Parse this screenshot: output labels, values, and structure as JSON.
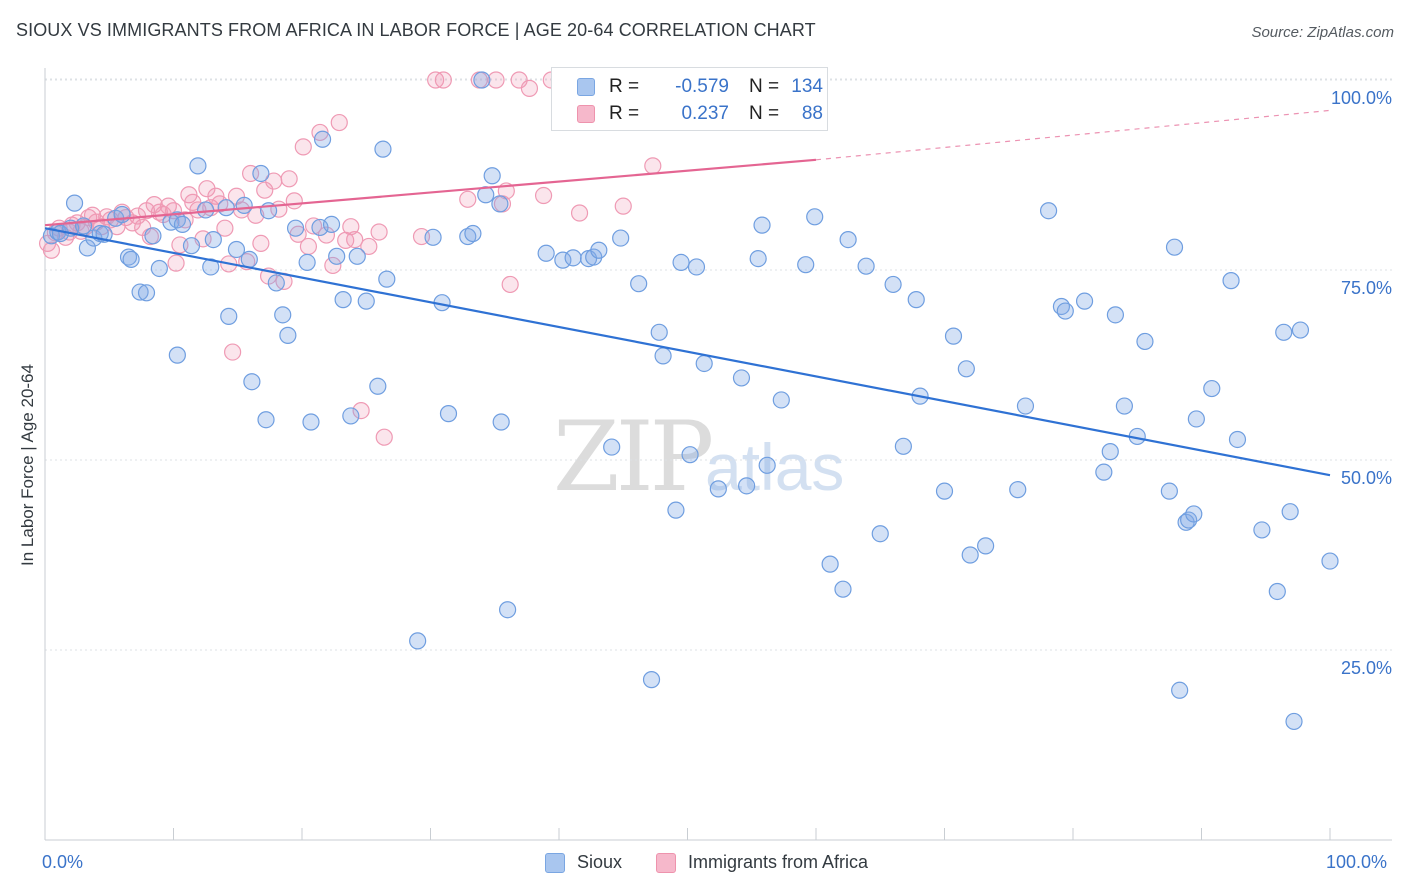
{
  "header": {
    "title": "SIOUX VS IMMIGRANTS FROM AFRICA IN LABOR FORCE | AGE 20-64 CORRELATION CHART",
    "source": "Source: ZipAtlas.com"
  },
  "watermark": {
    "zip": "ZIP",
    "atlas": "atlas"
  },
  "legend_top": {
    "r_label": "R =",
    "n_label": "N =",
    "rows": [
      {
        "name": "Sioux",
        "r": "-0.579",
        "n": "134",
        "fill": "#a9c6ef",
        "stroke": "#7aa6e2"
      },
      {
        "name": "Immigrants from Africa",
        "r": "0.237",
        "n": "88",
        "fill": "#f6b8cb",
        "stroke": "#ee93ad"
      }
    ]
  },
  "colors": {
    "blue_point_fill": "rgba(130,170,230,0.35)",
    "blue_point_stroke": "#6f9ee0",
    "pink_point_fill": "rgba(240,150,180,0.25)",
    "pink_point_stroke": "#ef9ab4",
    "blue_line": "#2f72d4",
    "pink_line": "#e46592",
    "grid": "#dde1e5",
    "tick_label": "#3a73c9"
  },
  "chart_data": {
    "type": "scatter",
    "title": "SIOUX VS IMMIGRANTS FROM AFRICA IN LABOR FORCE | AGE 20-64 CORRELATION CHART",
    "xlabel": "",
    "ylabel": "In Labor Force | Age 20-64",
    "xlim": [
      0,
      100
    ],
    "ylim": [
      0,
      105
    ],
    "x_tick_labels": [
      "0.0%",
      "100.0%"
    ],
    "y_ticks": [
      {
        "value": 25,
        "label": "25.0%"
      },
      {
        "value": 50,
        "label": "50.0%"
      },
      {
        "value": 75,
        "label": "75.0%"
      },
      {
        "value": 100,
        "label": "100.0%"
      }
    ],
    "grid": true,
    "legend_position": "top-center",
    "series": [
      {
        "name": "Sioux",
        "R": -0.579,
        "N": 134,
        "trend": {
          "x0": 0,
          "y0": 80.5,
          "x1": 100,
          "y1": 48.0,
          "dashed_from": null
        },
        "points": [
          [
            0.5,
            79.5
          ],
          [
            1.0,
            80.0
          ],
          [
            1.2,
            79.8
          ],
          [
            2.0,
            80.5
          ],
          [
            2.3,
            83.8
          ],
          [
            3.0,
            80.8
          ],
          [
            3.3,
            77.9
          ],
          [
            3.8,
            79.2
          ],
          [
            4.3,
            79.8
          ],
          [
            4.6,
            79.7
          ],
          [
            5.5,
            81.8
          ],
          [
            6.0,
            82.3
          ],
          [
            6.5,
            76.7
          ],
          [
            6.7,
            76.4
          ],
          [
            7.4,
            72.1
          ],
          [
            7.9,
            72.0
          ],
          [
            8.4,
            79.5
          ],
          [
            8.9,
            75.2
          ],
          [
            9.8,
            81.3
          ],
          [
            10.3,
            81.6
          ],
          [
            10.3,
            63.8
          ],
          [
            10.7,
            81.0
          ],
          [
            11.4,
            78.2
          ],
          [
            11.9,
            88.7
          ],
          [
            12.5,
            82.9
          ],
          [
            12.9,
            75.4
          ],
          [
            13.1,
            79.0
          ],
          [
            14.1,
            83.2
          ],
          [
            14.3,
            68.9
          ],
          [
            14.9,
            77.7
          ],
          [
            15.5,
            83.5
          ],
          [
            15.9,
            76.4
          ],
          [
            16.1,
            60.3
          ],
          [
            16.8,
            87.7
          ],
          [
            17.2,
            55.3
          ],
          [
            17.4,
            82.8
          ],
          [
            18.0,
            73.3
          ],
          [
            18.5,
            69.1
          ],
          [
            18.9,
            66.4
          ],
          [
            19.5,
            80.5
          ],
          [
            20.4,
            76.0
          ],
          [
            20.7,
            55.0
          ],
          [
            21.4,
            80.6
          ],
          [
            21.6,
            92.2
          ],
          [
            22.3,
            81.0
          ],
          [
            22.7,
            76.8
          ],
          [
            23.2,
            71.1
          ],
          [
            23.8,
            55.8
          ],
          [
            24.3,
            76.8
          ],
          [
            25.0,
            70.9
          ],
          [
            25.9,
            59.7
          ],
          [
            26.3,
            90.9
          ],
          [
            26.6,
            73.8
          ],
          [
            29.0,
            26.2
          ],
          [
            30.2,
            79.3
          ],
          [
            30.9,
            70.7
          ],
          [
            31.4,
            56.1
          ],
          [
            32.9,
            79.4
          ],
          [
            33.3,
            79.8
          ],
          [
            34.0,
            100.0
          ],
          [
            34.3,
            84.9
          ],
          [
            34.8,
            87.4
          ],
          [
            35.5,
            55.0
          ],
          [
            36.0,
            30.3
          ],
          [
            35.4,
            83.7
          ],
          [
            39.0,
            77.2
          ],
          [
            40.3,
            76.3
          ],
          [
            41.1,
            76.6
          ],
          [
            42.3,
            76.5
          ],
          [
            42.7,
            76.7
          ],
          [
            43.1,
            77.6
          ],
          [
            44.1,
            51.7
          ],
          [
            44.8,
            79.2
          ],
          [
            46.2,
            73.2
          ],
          [
            47.2,
            21.1
          ],
          [
            47.8,
            66.8
          ],
          [
            48.1,
            63.7
          ],
          [
            49.1,
            43.4
          ],
          [
            49.5,
            76.0
          ],
          [
            50.2,
            50.7
          ],
          [
            50.7,
            75.4
          ],
          [
            51.3,
            62.7
          ],
          [
            52.4,
            46.2
          ],
          [
            54.2,
            60.8
          ],
          [
            54.6,
            46.6
          ],
          [
            55.5,
            76.5
          ],
          [
            55.8,
            80.9
          ],
          [
            56.2,
            49.3
          ],
          [
            57.3,
            57.9
          ],
          [
            59.2,
            75.7
          ],
          [
            59.9,
            82.0
          ],
          [
            61.1,
            36.3
          ],
          [
            62.1,
            33.0
          ],
          [
            62.5,
            79.0
          ],
          [
            63.9,
            75.5
          ],
          [
            65.0,
            40.3
          ],
          [
            66.0,
            73.1
          ],
          [
            66.8,
            51.8
          ],
          [
            67.8,
            71.1
          ],
          [
            68.1,
            58.4
          ],
          [
            70.0,
            45.9
          ],
          [
            70.7,
            66.3
          ],
          [
            71.7,
            62.0
          ],
          [
            72.0,
            37.5
          ],
          [
            73.2,
            38.7
          ],
          [
            75.7,
            46.1
          ],
          [
            76.3,
            57.1
          ],
          [
            78.1,
            82.8
          ],
          [
            79.1,
            70.2
          ],
          [
            79.4,
            69.6
          ],
          [
            80.9,
            70.9
          ],
          [
            82.4,
            48.4
          ],
          [
            82.9,
            51.1
          ],
          [
            83.3,
            69.1
          ],
          [
            84.0,
            57.1
          ],
          [
            85.0,
            53.1
          ],
          [
            85.6,
            65.6
          ],
          [
            87.5,
            45.9
          ],
          [
            87.9,
            78.0
          ],
          [
            88.3,
            19.7
          ],
          [
            88.8,
            41.8
          ],
          [
            89.0,
            42.1
          ],
          [
            89.4,
            42.9
          ],
          [
            89.6,
            55.4
          ],
          [
            90.8,
            59.4
          ],
          [
            92.3,
            73.6
          ],
          [
            92.8,
            52.7
          ],
          [
            94.7,
            40.8
          ],
          [
            95.9,
            32.7
          ],
          [
            96.4,
            66.8
          ],
          [
            96.9,
            43.2
          ],
          [
            97.2,
            15.6
          ],
          [
            97.7,
            67.1
          ],
          [
            100.0,
            36.7
          ]
        ]
      },
      {
        "name": "Immigrants from Africa",
        "R": 0.237,
        "N": 88,
        "trend": {
          "x0": 0,
          "y0": 80.9,
          "x1": 60,
          "y1": 89.5,
          "dashed_to_x": 100,
          "dashed_to_y": 96.0
        },
        "points": [
          [
            0.2,
            78.5
          ],
          [
            0.5,
            77.6
          ],
          [
            0.8,
            79.9
          ],
          [
            1.1,
            80.5
          ],
          [
            1.6,
            79.3
          ],
          [
            1.9,
            80.0
          ],
          [
            2.1,
            80.9
          ],
          [
            2.5,
            81.2
          ],
          [
            2.8,
            80.1
          ],
          [
            3.1,
            80.6
          ],
          [
            3.4,
            81.9
          ],
          [
            3.7,
            82.2
          ],
          [
            4.0,
            81.3
          ],
          [
            4.4,
            80.7
          ],
          [
            4.8,
            82.0
          ],
          [
            5.1,
            81.6
          ],
          [
            5.6,
            80.7
          ],
          [
            6.0,
            82.6
          ],
          [
            6.3,
            81.9
          ],
          [
            6.8,
            81.2
          ],
          [
            7.2,
            82.1
          ],
          [
            7.6,
            80.6
          ],
          [
            7.9,
            82.8
          ],
          [
            8.2,
            79.4
          ],
          [
            8.5,
            83.6
          ],
          [
            8.9,
            82.6
          ],
          [
            9.2,
            82.3
          ],
          [
            9.6,
            83.4
          ],
          [
            10.0,
            82.8
          ],
          [
            10.2,
            75.9
          ],
          [
            10.5,
            78.3
          ],
          [
            10.9,
            81.6
          ],
          [
            11.2,
            84.9
          ],
          [
            11.5,
            83.9
          ],
          [
            11.9,
            82.9
          ],
          [
            12.3,
            79.1
          ],
          [
            12.6,
            85.7
          ],
          [
            12.9,
            83.2
          ],
          [
            13.3,
            84.7
          ],
          [
            13.6,
            83.7
          ],
          [
            14.0,
            80.5
          ],
          [
            14.3,
            75.8
          ],
          [
            14.6,
            64.2
          ],
          [
            14.9,
            84.7
          ],
          [
            15.3,
            82.9
          ],
          [
            15.7,
            76.1
          ],
          [
            16.0,
            87.7
          ],
          [
            16.4,
            82.2
          ],
          [
            16.8,
            78.5
          ],
          [
            17.1,
            85.5
          ],
          [
            17.4,
            74.2
          ],
          [
            17.8,
            86.7
          ],
          [
            18.2,
            83.0
          ],
          [
            18.6,
            73.5
          ],
          [
            19.0,
            87.0
          ],
          [
            19.4,
            84.1
          ],
          [
            19.7,
            79.7
          ],
          [
            20.1,
            91.2
          ],
          [
            20.5,
            78.1
          ],
          [
            20.9,
            80.8
          ],
          [
            21.4,
            93.1
          ],
          [
            21.9,
            79.6
          ],
          [
            22.4,
            75.6
          ],
          [
            22.9,
            94.4
          ],
          [
            23.4,
            78.9
          ],
          [
            23.8,
            80.7
          ],
          [
            24.1,
            79.0
          ],
          [
            24.6,
            56.5
          ],
          [
            25.2,
            78.1
          ],
          [
            26.0,
            80.0
          ],
          [
            26.4,
            53.0
          ],
          [
            29.3,
            79.4
          ],
          [
            30.4,
            100.0
          ],
          [
            31.0,
            100.0
          ],
          [
            32.9,
            84.3
          ],
          [
            33.8,
            100.0
          ],
          [
            35.1,
            100.0
          ],
          [
            35.6,
            83.7
          ],
          [
            36.2,
            73.1
          ],
          [
            36.9,
            100.0
          ],
          [
            37.7,
            98.9
          ],
          [
            38.8,
            84.8
          ],
          [
            39.4,
            100.0
          ],
          [
            41.6,
            82.5
          ],
          [
            45.0,
            83.4
          ],
          [
            47.3,
            88.7
          ],
          [
            48.9,
            100.0
          ],
          [
            35.9,
            85.4
          ]
        ]
      }
    ]
  }
}
